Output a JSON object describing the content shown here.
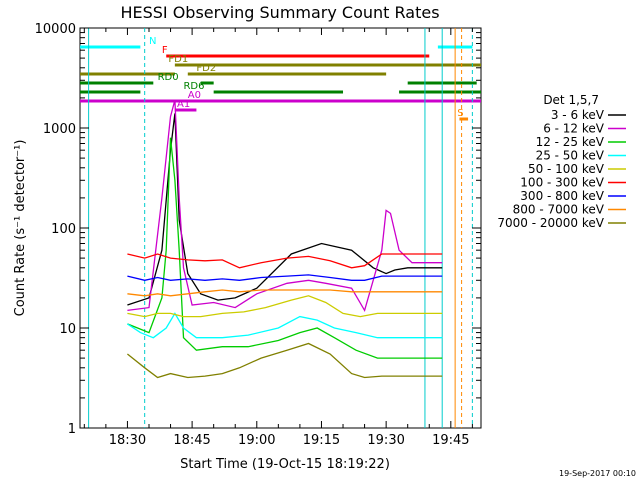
{
  "chart_data": {
    "type": "line",
    "title": "HESSI Observing Summary Count Rates",
    "xlabel": "Start Time (19-Oct-15 18:19:22)",
    "ylabel": "Count Rate (s⁻¹ detector⁻¹)",
    "yscale": "log",
    "xlim": [
      1099,
      1192
    ],
    "ylim": [
      1,
      10000
    ],
    "x_unit": "minutes after 00:00 UT, 19-Oct-15",
    "x_ticks": [
      1110,
      1125,
      1140,
      1155,
      1170,
      1185
    ],
    "x_tick_labels": [
      "18:30",
      "18:45",
      "19:00",
      "19:15",
      "19:30",
      "19:45"
    ],
    "y_ticks": [
      1,
      10,
      100,
      1000,
      10000
    ],
    "y_tick_labels": [
      "1",
      "10",
      "100",
      "1000",
      "10000"
    ],
    "grid": false,
    "legend_title": "Det 1,5,7",
    "legend_position": "right",
    "series": [
      {
        "name": "3 - 6 keV",
        "color": "#000000",
        "points": [
          [
            1110,
            17
          ],
          [
            1115,
            20
          ],
          [
            1118,
            60
          ],
          [
            1120,
            600
          ],
          [
            1121,
            1400
          ],
          [
            1122,
            120
          ],
          [
            1124,
            35
          ],
          [
            1127,
            22
          ],
          [
            1131,
            19
          ],
          [
            1135,
            20
          ],
          [
            1140,
            25
          ],
          [
            1148,
            55
          ],
          [
            1155,
            70
          ],
          [
            1162,
            60
          ],
          [
            1167,
            40
          ],
          [
            1170,
            35
          ],
          [
            1172,
            38
          ],
          [
            1175,
            40
          ],
          [
            1179,
            40
          ],
          [
            1183,
            40
          ]
        ]
      },
      {
        "name": "6 - 12 keV",
        "color": "#cc00cc",
        "points": [
          [
            1110,
            15
          ],
          [
            1115,
            16
          ],
          [
            1118,
            200
          ],
          [
            1120,
            1300
          ],
          [
            1121,
            1900
          ],
          [
            1122,
            200
          ],
          [
            1123,
            40
          ],
          [
            1125,
            17
          ],
          [
            1130,
            18
          ],
          [
            1135,
            16
          ],
          [
            1140,
            22
          ],
          [
            1147,
            28
          ],
          [
            1152,
            30
          ],
          [
            1156,
            28
          ],
          [
            1162,
            25
          ],
          [
            1165,
            15
          ],
          [
            1167,
            30
          ],
          [
            1169,
            60
          ],
          [
            1170,
            150
          ],
          [
            1171,
            140
          ],
          [
            1173,
            60
          ],
          [
            1176,
            45
          ],
          [
            1179,
            45
          ],
          [
            1183,
            45
          ]
        ]
      },
      {
        "name": "12 - 25 keV",
        "color": "#00cc00",
        "points": [
          [
            1110,
            11
          ],
          [
            1115,
            9
          ],
          [
            1118,
            20
          ],
          [
            1119,
            60
          ],
          [
            1120,
            800
          ],
          [
            1121,
            300
          ],
          [
            1122,
            60
          ],
          [
            1123,
            8
          ],
          [
            1126,
            6
          ],
          [
            1132,
            6.5
          ],
          [
            1138,
            6.5
          ],
          [
            1145,
            7.5
          ],
          [
            1150,
            9
          ],
          [
            1154,
            10
          ],
          [
            1158,
            8
          ],
          [
            1163,
            6
          ],
          [
            1168,
            5
          ],
          [
            1172,
            5
          ],
          [
            1176,
            5
          ],
          [
            1180,
            5
          ],
          [
            1183,
            5
          ]
        ]
      },
      {
        "name": "25 - 50 keV",
        "color": "#00ffff",
        "points": [
          [
            1110,
            11
          ],
          [
            1113,
            9
          ],
          [
            1116,
            8
          ],
          [
            1119,
            10
          ],
          [
            1121,
            14
          ],
          [
            1123,
            10
          ],
          [
            1126,
            8
          ],
          [
            1132,
            8
          ],
          [
            1138,
            8.5
          ],
          [
            1145,
            10
          ],
          [
            1150,
            13
          ],
          [
            1154,
            12
          ],
          [
            1158,
            10
          ],
          [
            1163,
            9
          ],
          [
            1168,
            8
          ],
          [
            1172,
            8
          ],
          [
            1176,
            8
          ],
          [
            1180,
            8
          ],
          [
            1183,
            8
          ]
        ]
      },
      {
        "name": "50 - 100 keV",
        "color": "#cccc00",
        "points": [
          [
            1110,
            14
          ],
          [
            1114,
            13
          ],
          [
            1117,
            14
          ],
          [
            1120,
            14
          ],
          [
            1123,
            13
          ],
          [
            1127,
            13
          ],
          [
            1132,
            14
          ],
          [
            1137,
            14.5
          ],
          [
            1142,
            16
          ],
          [
            1148,
            19
          ],
          [
            1152,
            21
          ],
          [
            1156,
            18
          ],
          [
            1160,
            14
          ],
          [
            1164,
            13
          ],
          [
            1168,
            14
          ],
          [
            1172,
            14
          ],
          [
            1176,
            14
          ],
          [
            1180,
            14
          ],
          [
            1183,
            14
          ]
        ]
      },
      {
        "name": "100 - 300 keV",
        "color": "#ff0000",
        "points": [
          [
            1110,
            55
          ],
          [
            1114,
            50
          ],
          [
            1117,
            55
          ],
          [
            1120,
            50
          ],
          [
            1124,
            48
          ],
          [
            1128,
            47
          ],
          [
            1132,
            48
          ],
          [
            1136,
            40
          ],
          [
            1141,
            45
          ],
          [
            1147,
            50
          ],
          [
            1152,
            52
          ],
          [
            1157,
            47
          ],
          [
            1162,
            40
          ],
          [
            1165,
            42
          ],
          [
            1169,
            55
          ],
          [
            1172,
            55
          ],
          [
            1176,
            55
          ],
          [
            1180,
            55
          ],
          [
            1183,
            55
          ]
        ]
      },
      {
        "name": "300 - 800 keV",
        "color": "#0000ff",
        "points": [
          [
            1110,
            33
          ],
          [
            1114,
            30
          ],
          [
            1117,
            32
          ],
          [
            1120,
            30
          ],
          [
            1124,
            31
          ],
          [
            1128,
            30
          ],
          [
            1132,
            31
          ],
          [
            1136,
            30
          ],
          [
            1141,
            32
          ],
          [
            1147,
            33
          ],
          [
            1152,
            34
          ],
          [
            1157,
            32
          ],
          [
            1162,
            30
          ],
          [
            1165,
            30
          ],
          [
            1169,
            33
          ],
          [
            1172,
            33
          ],
          [
            1176,
            33
          ],
          [
            1180,
            33
          ],
          [
            1183,
            33
          ]
        ]
      },
      {
        "name": "800 - 7000 keV",
        "color": "#ff8800",
        "points": [
          [
            1110,
            22
          ],
          [
            1114,
            21
          ],
          [
            1117,
            22
          ],
          [
            1120,
            21
          ],
          [
            1124,
            22
          ],
          [
            1128,
            23
          ],
          [
            1132,
            24
          ],
          [
            1136,
            23
          ],
          [
            1141,
            24
          ],
          [
            1147,
            24
          ],
          [
            1152,
            24
          ],
          [
            1157,
            24
          ],
          [
            1162,
            23
          ],
          [
            1165,
            23
          ],
          [
            1169,
            23
          ],
          [
            1172,
            23
          ],
          [
            1176,
            23
          ],
          [
            1180,
            23
          ],
          [
            1183,
            23
          ]
        ]
      },
      {
        "name": "7000 - 20000 keV",
        "color": "#808000",
        "points": [
          [
            1110,
            5.5
          ],
          [
            1114,
            4
          ],
          [
            1117,
            3.2
          ],
          [
            1120,
            3.5
          ],
          [
            1124,
            3.2
          ],
          [
            1128,
            3.3
          ],
          [
            1132,
            3.5
          ],
          [
            1136,
            4
          ],
          [
            1141,
            5
          ],
          [
            1147,
            6
          ],
          [
            1152,
            7
          ],
          [
            1157,
            5.5
          ],
          [
            1162,
            3.5
          ],
          [
            1165,
            3.2
          ],
          [
            1169,
            3.3
          ],
          [
            1172,
            3.3
          ],
          [
            1176,
            3.3
          ],
          [
            1180,
            3.3
          ],
          [
            1183,
            3.3
          ]
        ]
      }
    ],
    "vertical_lines": [
      {
        "x": 1101,
        "color": "#00cccc",
        "style": "solid"
      },
      {
        "x": 1114,
        "color": "#00cccc",
        "style": "dashed"
      },
      {
        "x": 1179,
        "color": "#00cccc",
        "style": "solid"
      },
      {
        "x": 1183,
        "color": "#00cccc",
        "style": "solid"
      },
      {
        "x": 1190,
        "color": "#00cccc",
        "style": "dashed"
      },
      {
        "x": 1186,
        "color": "#ff8800",
        "style": "solid"
      },
      {
        "x": 1187.5,
        "color": "#ff8800",
        "style": "dashed"
      }
    ],
    "flag_bars": [
      {
        "label": "N",
        "color": "#00ffff",
        "label_at": 1115,
        "segments": [
          [
            1099,
            1113
          ],
          [
            1182,
            1190
          ]
        ]
      },
      {
        "label": "F",
        "color": "#ff0000",
        "label_at": 1118,
        "segments": [
          [
            1119,
            1180
          ]
        ]
      },
      {
        "label": "FD1",
        "color": "#808000",
        "label_at": 1119.5,
        "segments": [
          [
            1121,
            1180
          ],
          [
            1170,
            1192
          ]
        ]
      },
      {
        "label": "FD2",
        "color": "#808000",
        "label_at": 1126,
        "segments": [
          [
            1099,
            1121
          ],
          [
            1124,
            1170
          ]
        ]
      },
      {
        "label": "RD0",
        "color": "#008000",
        "label_at": 1117,
        "segments": [
          [
            1099,
            1116
          ],
          [
            1127,
            1130
          ],
          [
            1175,
            1191
          ]
        ]
      },
      {
        "label": "RD6",
        "color": "#008000",
        "label_at": 1123,
        "segments": [
          [
            1099,
            1113
          ],
          [
            1130,
            1160
          ],
          [
            1173,
            1192
          ]
        ]
      },
      {
        "label": "A0",
        "color": "#cc00cc",
        "label_at": 1124,
        "segments": [
          [
            1099,
            1192
          ]
        ]
      },
      {
        "label": "A1",
        "color": "#cc00cc",
        "label_at": 1121.5,
        "segments": [
          [
            1121,
            1126
          ]
        ]
      },
      {
        "label": "S",
        "color": "#ff8800",
        "label_at": 1186.5,
        "segments": [
          [
            1187,
            1189
          ]
        ]
      }
    ]
  },
  "footer": {
    "timestamp": "19-Sep-2017 00:10"
  }
}
